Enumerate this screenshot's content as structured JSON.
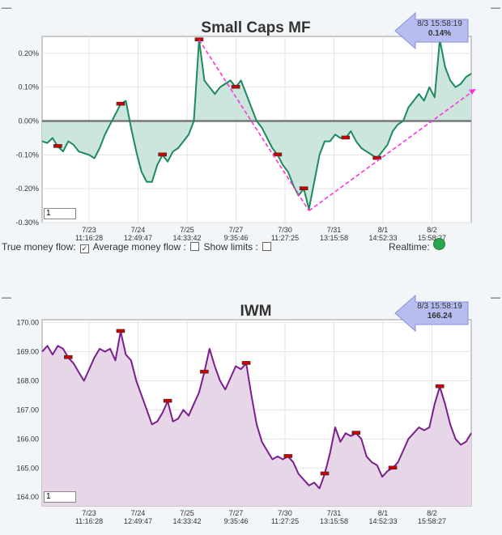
{
  "chart_data": [
    {
      "type": "line",
      "title": "Small Caps MF",
      "ylim": [
        -0.3,
        0.25
      ],
      "yticks": [
        "0.20%",
        "0.10%",
        "0.00%",
        "-0.10%",
        "-0.20%",
        "-0.30%"
      ],
      "xticks": [
        {
          "date": "7/23",
          "time": "11:16:28"
        },
        {
          "date": "7/24",
          "time": "12:49:47"
        },
        {
          "date": "7/25",
          "time": "14:33:42"
        },
        {
          "date": "7/27",
          "time": "9:35:46"
        },
        {
          "date": "7/30",
          "time": "11:27:25"
        },
        {
          "date": "7/31",
          "time": "13:15:58"
        },
        {
          "date": "8/1",
          "time": "14:52:33"
        },
        {
          "date": "8/2",
          "time": "15:58:27"
        }
      ],
      "series": [
        {
          "values": [
            -0.06,
            -0.065,
            -0.05,
            -0.075,
            -0.09,
            -0.06,
            -0.07,
            -0.09,
            -0.095,
            -0.1,
            -0.11,
            -0.08,
            -0.04,
            -0.01,
            0.02,
            0.05,
            0.06,
            -0.02,
            -0.09,
            -0.15,
            -0.18,
            -0.18,
            -0.13,
            -0.1,
            -0.12,
            -0.09,
            -0.08,
            -0.06,
            -0.04,
            0.0,
            0.24,
            0.12,
            0.1,
            0.08,
            0.1,
            0.11,
            0.12,
            0.1,
            0.12,
            0.08,
            0.04,
            0.0,
            -0.02,
            -0.05,
            -0.08,
            -0.1,
            -0.13,
            -0.15,
            -0.19,
            -0.22,
            -0.2,
            -0.26,
            -0.18,
            -0.1,
            -0.06,
            -0.06,
            -0.04,
            -0.05,
            -0.05,
            -0.03,
            -0.06,
            -0.08,
            -0.09,
            -0.1,
            -0.11,
            -0.09,
            -0.07,
            -0.03,
            -0.01,
            0.0,
            0.04,
            0.06,
            0.08,
            0.06,
            0.1,
            0.07,
            0.24,
            0.16,
            0.12,
            0.1,
            0.11,
            0.13,
            0.14
          ]
        }
      ],
      "annotation": {
        "date": "8/3 15:58:19",
        "value": "0.14%"
      }
    },
    {
      "type": "area",
      "title": "IWM",
      "ylim": [
        163.7,
        170.1
      ],
      "yticks": [
        "170.00",
        "169.00",
        "168.00",
        "167.00",
        "166.00",
        "165.00",
        "164.00"
      ],
      "xticks": [
        {
          "date": "7/23",
          "time": "11:16:28"
        },
        {
          "date": "7/24",
          "time": "12:49:47"
        },
        {
          "date": "7/25",
          "time": "14:33:42"
        },
        {
          "date": "7/27",
          "time": "9:35:46"
        },
        {
          "date": "7/30",
          "time": "11:27:25"
        },
        {
          "date": "7/31",
          "time": "13:15:58"
        },
        {
          "date": "8/1",
          "time": "14:52:33"
        },
        {
          "date": "8/2",
          "time": "15:58:27"
        }
      ],
      "series": [
        {
          "values": [
            169.0,
            169.2,
            168.9,
            169.2,
            169.1,
            168.8,
            168.6,
            168.3,
            168.0,
            168.4,
            168.8,
            169.1,
            169.0,
            169.1,
            168.7,
            169.7,
            168.9,
            168.7,
            168.0,
            167.5,
            167.0,
            166.5,
            166.6,
            166.9,
            167.3,
            166.6,
            166.7,
            167.0,
            166.8,
            167.2,
            167.6,
            168.3,
            169.1,
            168.5,
            168.0,
            167.7,
            168.1,
            168.5,
            168.4,
            168.6,
            167.5,
            166.5,
            165.9,
            165.6,
            165.3,
            165.4,
            165.3,
            165.4,
            165.2,
            164.8,
            164.6,
            164.4,
            164.5,
            164.3,
            164.8,
            165.5,
            166.4,
            165.9,
            166.2,
            166.1,
            166.2,
            166.0,
            165.4,
            165.2,
            165.1,
            164.7,
            164.9,
            165.0,
            165.2,
            165.6,
            166.0,
            166.2,
            166.4,
            166.3,
            166.4,
            167.2,
            167.8,
            167.2,
            166.5,
            166.0,
            165.8,
            165.9,
            166.2
          ]
        }
      ],
      "annotation": {
        "date": "8/3 15:58:19",
        "value": "166.24"
      }
    }
  ],
  "controls": {
    "true_flow_label": "True money flow:",
    "avg_flow_label": "Average money flow :",
    "show_limits_label": "Show limits :",
    "realtime_label": "Realtime:",
    "input_value_1": "1",
    "input_value_2": "1",
    "dash_1": "—",
    "dash_2": "—",
    "dash_3": "—",
    "dash_4": "—"
  },
  "colors": {
    "mf_line": "#1c8a5c",
    "mf_fill": "#cde6dd",
    "iwm_line": "#7a1f8c",
    "iwm_fill": "#e6d6e8",
    "trend": "#ff33dd",
    "zero_line": "#777777",
    "marker": "#cc0000"
  }
}
